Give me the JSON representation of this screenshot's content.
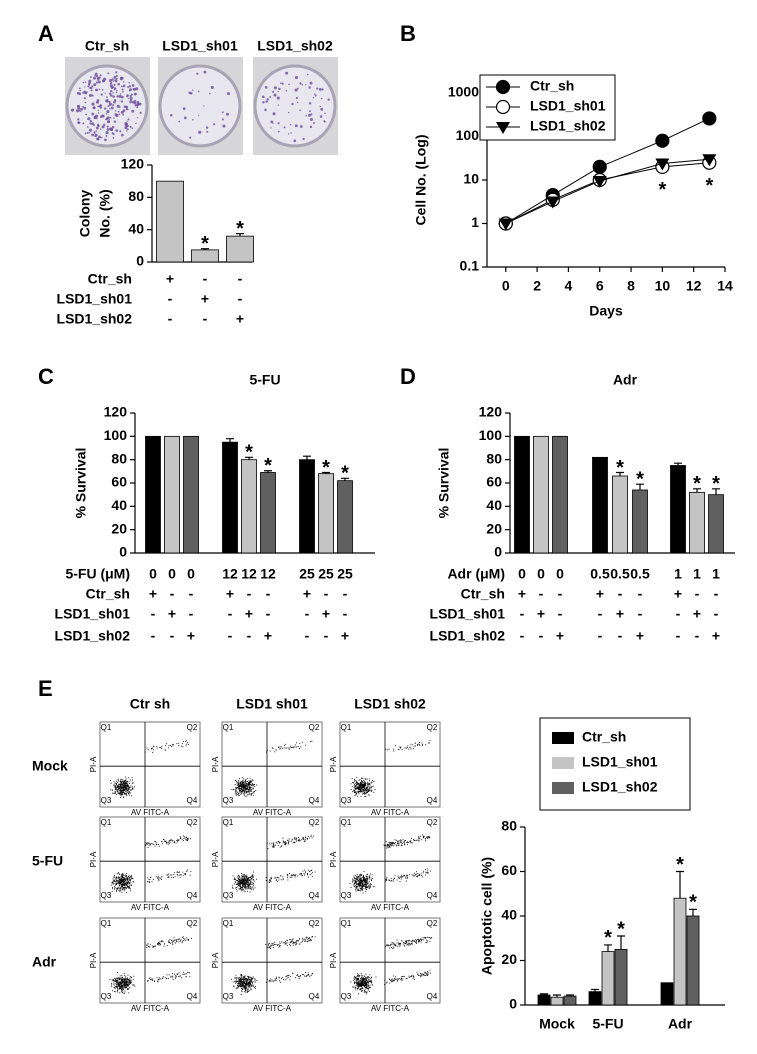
{
  "plates": {
    "labels": [
      "Ctr_sh",
      "LSD1_sh01",
      "LSD1_sh02"
    ]
  },
  "flow": {
    "columns": [
      "Ctr sh",
      "LSD1 sh01",
      "LSD1 sh02"
    ],
    "rows": [
      "Mock",
      "5-FU",
      "Adr"
    ],
    "quadrants": [
      "Q1",
      "Q2",
      "Q3",
      "Q4"
    ],
    "x_label": "AV FITC-A",
    "y_label": "PI-A"
  },
  "chart_data": [
    {
      "type": "bar",
      "panel": "A",
      "y_label": [
        "Colony",
        "No. (%)"
      ],
      "values": [
        100,
        15,
        32
      ],
      "errors": [
        0,
        1.5,
        3
      ],
      "colors": [
        "#c4c4c4",
        "#c4c4c4",
        "#c4c4c4"
      ],
      "ylim": [
        0,
        120
      ],
      "yticks": [
        0,
        40,
        80,
        120
      ],
      "significance": [
        null,
        "*",
        "*"
      ],
      "conditions": [
        {
          "label": "Ctr_sh",
          "cells": [
            "+",
            "-",
            "-"
          ]
        },
        {
          "label": "LSD1_sh01",
          "cells": [
            "-",
            "+",
            "-"
          ]
        },
        {
          "label": "LSD1_sh02",
          "cells": [
            "-",
            "-",
            "+"
          ]
        }
      ]
    },
    {
      "type": "line",
      "panel": "B",
      "x_label": "Days",
      "y_label": "Cell No. (Log)",
      "log_y": true,
      "x": [
        0,
        3,
        6,
        10,
        13
      ],
      "series": [
        {
          "name": "Ctr_sh",
          "color": "#000000",
          "marker": "filled-circle",
          "values": [
            1,
            4.5,
            20,
            80,
            260
          ]
        },
        {
          "name": "LSD1_sh01",
          "color": "#000000",
          "marker": "open-circle",
          "values": [
            1,
            3.5,
            10,
            20,
            25
          ],
          "errors": [
            0,
            0,
            0,
            5,
            8
          ]
        },
        {
          "name": "LSD1_sh02",
          "color": "#000000",
          "marker": "triangle-down",
          "values": [
            1,
            3.2,
            9.5,
            24,
            30
          ]
        }
      ],
      "xlim": [
        -1.2,
        14
      ],
      "xticks": [
        0,
        2,
        4,
        6,
        8,
        10,
        12,
        14
      ],
      "ylim": [
        0.1,
        1000
      ],
      "yticks": [
        0.1,
        1,
        10,
        100,
        1000
      ],
      "significance": [
        null,
        null,
        null,
        "*",
        "*"
      ],
      "legend": "upper-left"
    },
    {
      "type": "bar",
      "panel": "C",
      "title": "5-FU",
      "y_label": [
        "% Survival"
      ],
      "values": [
        100,
        100,
        100,
        95,
        80,
        69,
        80,
        68,
        62
      ],
      "errors": [
        0,
        0,
        0,
        3,
        2,
        1.5,
        3,
        1,
        2
      ],
      "colors": [
        "#000000",
        "#c4c4c4",
        "#606060",
        "#000000",
        "#c4c4c4",
        "#606060",
        "#000000",
        "#c4c4c4",
        "#606060"
      ],
      "ylim": [
        0,
        120
      ],
      "yticks": [
        0,
        20,
        40,
        60,
        80,
        100,
        120
      ],
      "significance": [
        null,
        null,
        null,
        null,
        "*",
        "*",
        null,
        "*",
        "*"
      ],
      "conditions": [
        {
          "label": "5-FU (μM)",
          "cells": [
            "0",
            "0",
            "0",
            "12",
            "12",
            "12",
            "25",
            "25",
            "25"
          ]
        },
        {
          "label": "Ctr_sh",
          "cells": [
            "+",
            "-",
            "-",
            "+",
            "-",
            "-",
            "+",
            "-",
            "-"
          ]
        },
        {
          "label": "LSD1_sh01",
          "cells": [
            "-",
            "+",
            "-",
            "-",
            "+",
            "-",
            "-",
            "+",
            "-"
          ]
        },
        {
          "label": "LSD1_sh02",
          "cells": [
            "-",
            "-",
            "+",
            "-",
            "-",
            "+",
            "-",
            "-",
            "+"
          ]
        }
      ]
    },
    {
      "type": "bar",
      "panel": "D",
      "title": "Adr",
      "y_label": [
        "% Survival"
      ],
      "values": [
        100,
        100,
        100,
        82,
        66,
        54,
        75,
        52,
        50
      ],
      "errors": [
        0,
        0,
        0,
        0,
        3,
        5,
        2,
        3,
        5
      ],
      "colors": [
        "#000000",
        "#c4c4c4",
        "#606060",
        "#000000",
        "#c4c4c4",
        "#606060",
        "#000000",
        "#c4c4c4",
        "#606060"
      ],
      "ylim": [
        0,
        120
      ],
      "yticks": [
        0,
        20,
        40,
        60,
        80,
        100,
        120
      ],
      "significance": [
        null,
        null,
        null,
        null,
        "*",
        "*",
        null,
        "*",
        "*"
      ],
      "conditions": [
        {
          "label": "Adr (μM)",
          "cells": [
            "0",
            "0",
            "0",
            "0.5",
            "0.5",
            "0.5",
            "1",
            "1",
            "1"
          ]
        },
        {
          "label": "Ctr_sh",
          "cells": [
            "+",
            "-",
            "-",
            "+",
            "-",
            "-",
            "+",
            "-",
            "-"
          ]
        },
        {
          "label": "LSD1_sh01",
          "cells": [
            "-",
            "+",
            "-",
            "-",
            "+",
            "-",
            "-",
            "+",
            "-"
          ]
        },
        {
          "label": "LSD1_sh02",
          "cells": [
            "-",
            "-",
            "+",
            "-",
            "-",
            "+",
            "-",
            "-",
            "+"
          ]
        }
      ]
    },
    {
      "type": "grouped-bar",
      "panel": "E",
      "y_label": "Apoptotic cell (%)",
      "categories": [
        "Mock",
        "5-FU",
        "Adr"
      ],
      "series": [
        {
          "name": "Ctr_sh",
          "color": "#000000",
          "values": [
            4.5,
            6,
            10
          ],
          "errors": [
            0.5,
            1,
            0
          ],
          "significance": [
            null,
            null,
            null
          ]
        },
        {
          "name": "LSD1_sh01",
          "color": "#c4c4c4",
          "values": [
            3.5,
            24,
            48
          ],
          "errors": [
            1,
            3,
            12
          ],
          "significance": [
            null,
            "*",
            "*"
          ]
        },
        {
          "name": "LSD1_sh02",
          "color": "#606060",
          "values": [
            4,
            25,
            40
          ],
          "errors": [
            0.5,
            6,
            3
          ],
          "significance": [
            null,
            "*",
            "*"
          ]
        }
      ],
      "ylim": [
        0,
        80
      ],
      "yticks": [
        0,
        20,
        40,
        60,
        80
      ],
      "legend": "top"
    }
  ]
}
